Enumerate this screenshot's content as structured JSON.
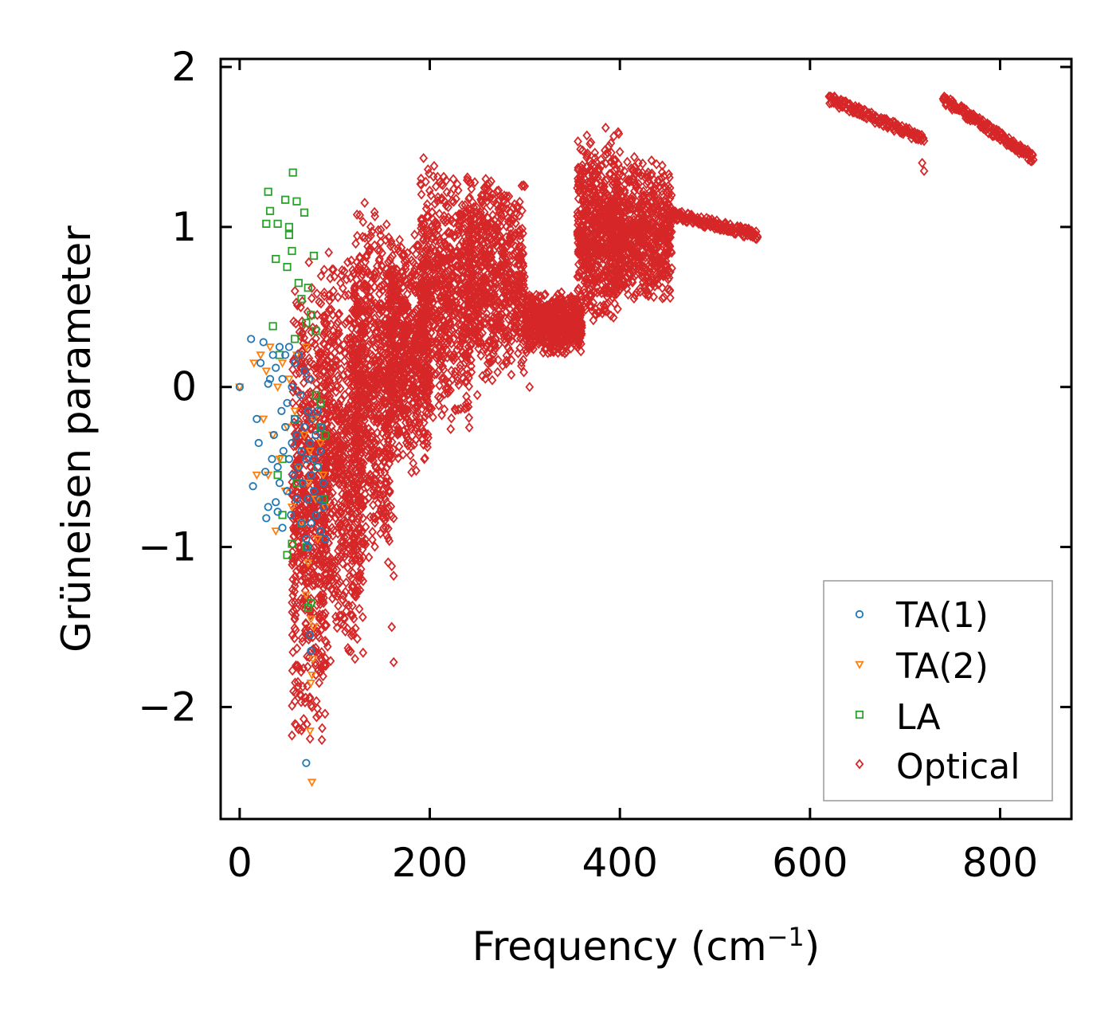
{
  "chart_data": {
    "type": "scatter",
    "title": "",
    "xlabel": "Frequency (cm",
    "xlabel_sup": "−1",
    "xlabel_close": ")",
    "ylabel": "Grüneisen parameter",
    "xlim": [
      -20,
      875
    ],
    "ylim": [
      -2.7,
      2.05
    ],
    "xticks": [
      0,
      200,
      400,
      600,
      800
    ],
    "xtick_labels": [
      "0",
      "200",
      "400",
      "600",
      "800"
    ],
    "yticks": [
      -2,
      -1,
      0,
      1,
      2
    ],
    "ytick_labels": [
      "−2",
      "−1",
      "0",
      "1",
      "2"
    ],
    "grid": false,
    "legend_position": "bottom-right",
    "series": [
      {
        "name": "TA(1)",
        "marker": "circle",
        "color": "#1f77b4",
        "x": [
          0,
          12,
          14,
          18,
          20,
          22,
          25,
          27,
          28,
          30,
          30,
          32,
          34,
          35,
          36,
          38,
          38,
          40,
          40,
          42,
          42,
          44,
          45,
          45,
          46,
          48,
          48,
          50,
          50,
          52,
          52,
          54,
          55,
          55,
          56,
          58,
          58,
          60,
          60,
          62,
          62,
          64,
          65,
          65,
          66,
          68,
          68,
          70,
          70,
          72,
          72,
          73,
          74,
          75,
          75,
          76,
          78,
          78,
          80,
          80,
          82,
          82,
          84,
          85,
          85,
          86,
          88,
          88,
          90,
          74,
          75,
          72,
          70
        ],
        "y": [
          0.0,
          0.3,
          -0.62,
          -0.2,
          -0.35,
          0.15,
          0.28,
          -0.53,
          -0.82,
          0.02,
          -0.75,
          0.05,
          -0.45,
          0.2,
          -0.3,
          -0.72,
          0.12,
          -0.5,
          -0.78,
          0.25,
          -0.6,
          -0.15,
          0.05,
          -0.88,
          -0.4,
          -0.25,
          0.2,
          -0.65,
          -0.1,
          0.25,
          -0.45,
          -0.8,
          0.0,
          -0.35,
          -0.55,
          -0.2,
          0.15,
          -0.7,
          -0.3,
          0.2,
          -0.5,
          -0.05,
          -0.85,
          -0.4,
          -0.6,
          -0.25,
          0.1,
          -0.45,
          -0.95,
          -0.15,
          -0.7,
          0.05,
          -0.35,
          -0.55,
          -0.85,
          -0.2,
          -0.45,
          -0.65,
          -0.3,
          -0.8,
          -0.5,
          -0.15,
          -0.7,
          -0.4,
          -0.9,
          -0.25,
          -0.6,
          -0.75,
          -0.95,
          -1.55,
          -1.65,
          -1.0,
          -2.35
        ]
      },
      {
        "name": "TA(2)",
        "marker": "triangle-down",
        "color": "#ff7f0e",
        "x": [
          0,
          15,
          18,
          22,
          25,
          28,
          30,
          32,
          35,
          38,
          40,
          42,
          45,
          48,
          50,
          52,
          55,
          58,
          60,
          62,
          65,
          68,
          70,
          72,
          74,
          75,
          76,
          78,
          80,
          82,
          85,
          88,
          90,
          74,
          76,
          75,
          77,
          72,
          78,
          70
        ],
        "y": [
          0.0,
          0.15,
          -0.55,
          0.2,
          -0.2,
          0.1,
          -0.55,
          0.25,
          -0.3,
          -0.9,
          0.0,
          -0.45,
          0.15,
          -0.65,
          -0.25,
          0.05,
          -0.75,
          -0.15,
          0.2,
          -0.5,
          -0.85,
          -0.3,
          0.25,
          -0.6,
          -0.4,
          -1.45,
          -1.8,
          -0.2,
          -0.7,
          -0.95,
          -0.35,
          -0.55,
          -0.75,
          -2.15,
          -2.47,
          -1.85,
          -1.7,
          -1.1,
          -1.5,
          -1.3
        ]
      },
      {
        "name": "LA",
        "marker": "square",
        "color": "#2ca02c",
        "x": [
          28,
          30,
          32,
          35,
          38,
          40,
          42,
          45,
          48,
          50,
          52,
          55,
          56,
          58,
          60,
          62,
          65,
          68,
          70,
          72,
          75,
          78,
          80,
          82,
          85,
          88,
          90,
          55,
          65,
          75,
          72,
          50,
          60,
          70,
          80,
          85,
          45,
          40,
          52,
          58
        ],
        "y": [
          1.02,
          1.22,
          1.1,
          0.38,
          0.8,
          1.02,
          0.2,
          -0.45,
          1.17,
          0.75,
          1.0,
          0.85,
          1.34,
          -0.2,
          1.16,
          0.65,
          0.55,
          1.09,
          -1.0,
          0.62,
          0.45,
          0.82,
          0.35,
          -0.5,
          -0.1,
          -0.7,
          -0.3,
          -0.98,
          -0.85,
          -1.35,
          -1.38,
          -1.05,
          -0.6,
          0.4,
          -0.05,
          -0.25,
          -0.8,
          -0.55,
          0.95,
          0.3
        ]
      },
      {
        "name": "Optical",
        "marker": "diamond",
        "color": "#d62728",
        "generated": true,
        "clusters": [
          {
            "x": [
              55,
              92
            ],
            "y": [
              -2.3,
              0.85
            ]
          },
          {
            "x": [
              88,
              130
            ],
            "y": [
              -1.8,
              0.9
            ]
          },
          {
            "x": [
              120,
              160
            ],
            "y": [
              -1.2,
              1.2
            ]
          },
          {
            "x": [
              155,
              200
            ],
            "y": [
              -0.55,
              1.0
            ]
          },
          {
            "x": [
              190,
              245
            ],
            "y": [
              -0.3,
              1.45
            ]
          },
          {
            "x": [
              240,
              300
            ],
            "y": [
              0.0,
              1.38
            ]
          },
          {
            "x": [
              300,
              360
            ],
            "y": [
              0.2,
              0.6
            ]
          },
          {
            "x": [
              355,
              400
            ],
            "y": [
              0.35,
              1.6
            ]
          },
          {
            "x": [
              395,
              455
            ],
            "y": [
              0.5,
              1.45
            ]
          }
        ],
        "bands": [
          {
            "x": [
              455,
              545
            ],
            "y_start": 1.08,
            "y_end": 0.95
          },
          {
            "x": [
              620,
              720
            ],
            "y_start": 1.8,
            "y_end": 1.55
          },
          {
            "x": [
              740,
              835
            ],
            "y_start": 1.8,
            "y_end": 1.43
          }
        ],
        "outliers": [
          [
            160,
            -1.5
          ],
          [
            162,
            -1.72
          ],
          [
            162,
            -1.18
          ],
          [
            160,
            -1.12
          ],
          [
            250,
            -0.05
          ],
          [
            305,
            0.0
          ],
          [
            385,
            1.62
          ],
          [
            720,
            1.35
          ],
          [
            718,
            1.4
          ],
          [
            158,
            -0.65
          ],
          [
            162,
            -0.82
          ]
        ]
      }
    ]
  }
}
